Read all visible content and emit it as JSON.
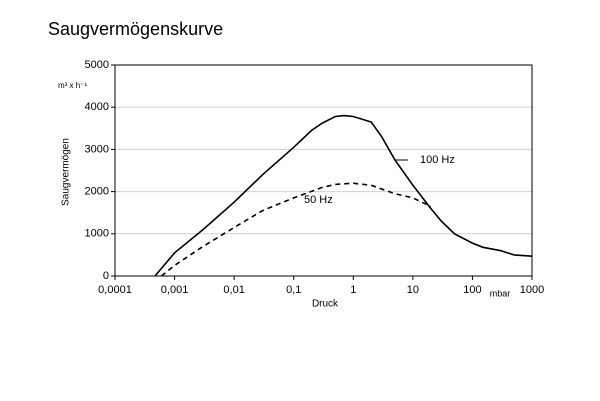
{
  "chart_data": {
    "type": "line",
    "title": "Saugvermögenskurve",
    "x_label": "Druck",
    "x_unit": "mbar",
    "y_label": "Saugvermögen",
    "y_unit": "m³ x h⁻¹",
    "xscale": "log",
    "xlim": [
      0.0001,
      1000
    ],
    "xticks": [
      {
        "value": 0.0001,
        "label": "0,0001"
      },
      {
        "value": 0.001,
        "label": "0,001"
      },
      {
        "value": 0.01,
        "label": "0,01"
      },
      {
        "value": 0.1,
        "label": "0,1"
      },
      1,
      10,
      100,
      1000
    ],
    "ylim": [
      0,
      5000
    ],
    "yticks": [
      0,
      1000,
      2000,
      3000,
      4000,
      5000
    ],
    "grid": "y",
    "series": [
      {
        "name": "100 Hz",
        "color": "#000000",
        "line_style": "solid",
        "x": [
          0.00047,
          0.001,
          0.003,
          0.01,
          0.03,
          0.1,
          0.2,
          0.3,
          0.5,
          0.7,
          1,
          2,
          3,
          5,
          10,
          20,
          30,
          50,
          100,
          150,
          300,
          500,
          1000
        ],
        "values": [
          0,
          550,
          1100,
          1750,
          2400,
          3050,
          3450,
          3620,
          3780,
          3800,
          3780,
          3650,
          3300,
          2750,
          2150,
          1600,
          1300,
          1000,
          780,
          680,
          600,
          500,
          470
        ]
      },
      {
        "name": "50 Hz",
        "color": "#000000",
        "line_style": "dashed",
        "x": [
          0.0006,
          0.001,
          0.003,
          0.01,
          0.03,
          0.1,
          0.3,
          0.5,
          1,
          2,
          5,
          10,
          20
        ],
        "values": [
          0,
          250,
          700,
          1150,
          1550,
          1850,
          2100,
          2170,
          2200,
          2150,
          1950,
          1850,
          1650
        ]
      }
    ]
  }
}
